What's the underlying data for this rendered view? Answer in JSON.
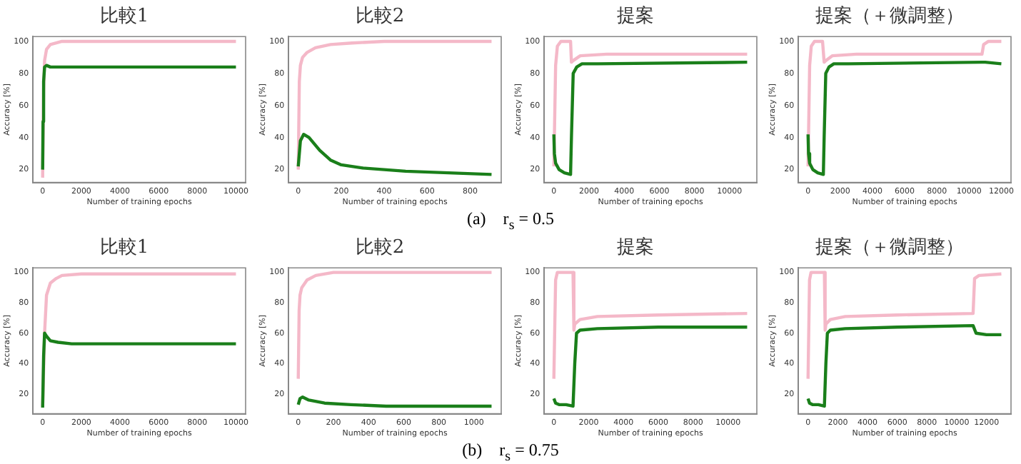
{
  "chart_data": [
    {
      "type": "line",
      "title": "比較1",
      "xlabel": "Number of training epochs",
      "ylabel": "Accuracy [%]",
      "xlim": [
        -500,
        10500
      ],
      "xticks": [
        0,
        2000,
        4000,
        6000,
        8000,
        10000
      ],
      "ylim": [
        12,
        103
      ],
      "yticks": [
        20,
        40,
        60,
        80,
        100
      ],
      "annotations": [
        "(a)　r$_{s}$ = 0.5"
      ],
      "series": [
        {
          "color": "#f4b8c8",
          "x": [
            0,
            50,
            100,
            200,
            400,
            700,
            1000,
            2000,
            10000
          ],
          "values": [
            15,
            70,
            88,
            95,
            98,
            99,
            100,
            100,
            100
          ]
        },
        {
          "color": "#1a7f1a",
          "x": [
            0,
            20,
            50,
            100,
            200,
            400,
            1000,
            3000,
            10000
          ],
          "values": [
            20,
            50,
            75,
            84,
            85,
            84,
            84,
            84,
            84
          ]
        }
      ]
    },
    {
      "type": "line",
      "title": "比較2",
      "xlabel": "Number of training epochs",
      "ylabel": "Accuracy [%]",
      "xlim": [
        -45,
        945
      ],
      "xticks": [
        0,
        200,
        400,
        600,
        800
      ],
      "ylim": [
        12,
        103
      ],
      "yticks": [
        20,
        40,
        60,
        80,
        100
      ],
      "series": [
        {
          "color": "#f4b8c8",
          "x": [
            0,
            5,
            10,
            20,
            40,
            80,
            150,
            250,
            400,
            900
          ],
          "values": [
            20,
            75,
            85,
            90,
            93,
            96,
            98,
            99,
            100,
            100
          ]
        },
        {
          "color": "#1a7f1a",
          "x": [
            0,
            10,
            25,
            50,
            100,
            150,
            200,
            300,
            500,
            700,
            900
          ],
          "values": [
            22,
            38,
            42,
            40,
            32,
            26,
            23,
            21,
            19,
            18,
            17
          ]
        }
      ]
    },
    {
      "type": "line",
      "title": "提案",
      "xlabel": "Number of training epochs",
      "ylabel": "Accuracy [%]",
      "xlim": [
        -550,
        11550
      ],
      "xticks": [
        0,
        2000,
        4000,
        6000,
        8000,
        10000
      ],
      "ylim": [
        12,
        103
      ],
      "yticks": [
        20,
        40,
        60,
        80,
        100
      ],
      "series": [
        {
          "color": "#f4b8c8",
          "x": [
            0,
            100,
            200,
            400,
            900,
            950,
            1000,
            1100,
            1500,
            3000,
            11000
          ],
          "values": [
            22,
            85,
            97,
            100,
            100,
            100,
            87,
            88,
            91,
            92,
            92
          ]
        },
        {
          "color": "#1a7f1a",
          "x": [
            0,
            30,
            100,
            300,
            600,
            950,
            1000,
            1100,
            1300,
            1600,
            2500,
            11000
          ],
          "values": [
            42,
            30,
            24,
            20,
            18,
            17,
            40,
            80,
            84,
            86,
            86,
            87
          ]
        }
      ]
    },
    {
      "type": "line",
      "title": "提案（＋微調整）",
      "xlabel": "Number of training epochs",
      "ylabel": "Accuracy [%]",
      "xlim": [
        -600,
        12600
      ],
      "xticks": [
        0,
        2000,
        4000,
        6000,
        8000,
        10000,
        12000
      ],
      "ylim": [
        12,
        103
      ],
      "yticks": [
        20,
        40,
        60,
        80,
        100
      ],
      "series": [
        {
          "color": "#f4b8c8",
          "x": [
            0,
            100,
            200,
            400,
            900,
            950,
            1000,
            1100,
            1500,
            3000,
            10800,
            10900,
            11200,
            12000
          ],
          "values": [
            22,
            85,
            97,
            100,
            100,
            100,
            87,
            88,
            91,
            92,
            92,
            98,
            100,
            100
          ]
        },
        {
          "color": "#1a7f1a",
          "x": [
            0,
            30,
            100,
            300,
            600,
            950,
            1000,
            1100,
            1300,
            1600,
            2500,
            10800,
            11000,
            12000
          ],
          "values": [
            42,
            30,
            24,
            20,
            18,
            17,
            40,
            80,
            84,
            86,
            86,
            87,
            87,
            86
          ]
        }
      ]
    },
    {
      "type": "line",
      "title": "比較1",
      "xlabel": "Number of training epochs",
      "ylabel": "Accuracy [%]",
      "xlim": [
        -500,
        10500
      ],
      "xticks": [
        0,
        2000,
        4000,
        6000,
        8000,
        10000
      ],
      "ylim": [
        7,
        103
      ],
      "yticks": [
        20,
        40,
        60,
        80,
        100
      ],
      "annotations": [
        "(b)　r$_{s}$ = 0.75"
      ],
      "series": [
        {
          "color": "#f4b8c8",
          "x": [
            0,
            100,
            200,
            400,
            700,
            1000,
            2000,
            10000
          ],
          "values": [
            12,
            60,
            85,
            93,
            96,
            98,
            99,
            99
          ]
        },
        {
          "color": "#1a7f1a",
          "x": [
            0,
            50,
            100,
            200,
            400,
            800,
            1500,
            10000
          ],
          "values": [
            11,
            45,
            60,
            58,
            55,
            54,
            53,
            53
          ]
        }
      ]
    },
    {
      "type": "line",
      "title": "比較2",
      "xlabel": "Number of training epochs",
      "ylabel": "Accuracy [%]",
      "xlim": [
        -55,
        1155
      ],
      "xticks": [
        0,
        200,
        400,
        600,
        800,
        1000
      ],
      "ylim": [
        7,
        103
      ],
      "yticks": [
        20,
        40,
        60,
        80,
        100
      ],
      "series": [
        {
          "color": "#f4b8c8",
          "x": [
            0,
            5,
            10,
            20,
            50,
            100,
            200,
            400,
            1100
          ],
          "values": [
            30,
            75,
            85,
            90,
            95,
            98,
            100,
            100,
            100
          ]
        },
        {
          "color": "#1a7f1a",
          "x": [
            0,
            10,
            25,
            60,
            150,
            300,
            500,
            1100
          ],
          "values": [
            13,
            17,
            18,
            16,
            14,
            13,
            12,
            12
          ]
        }
      ]
    },
    {
      "type": "line",
      "title": "提案",
      "xlabel": "Number of training epochs",
      "ylabel": "Accuracy [%]",
      "xlim": [
        -555,
        11655
      ],
      "xticks": [
        0,
        2000,
        4000,
        6000,
        8000,
        10000
      ],
      "ylim": [
        7,
        103
      ],
      "yticks": [
        20,
        40,
        60,
        80,
        100
      ],
      "series": [
        {
          "color": "#f4b8c8",
          "x": [
            0,
            100,
            200,
            500,
            1100,
            1150,
            1200,
            1500,
            2500,
            6000,
            11100
          ],
          "values": [
            30,
            95,
            100,
            100,
            100,
            62,
            66,
            69,
            71,
            72,
            73
          ]
        },
        {
          "color": "#1a7f1a",
          "x": [
            0,
            100,
            300,
            700,
            1100,
            1200,
            1300,
            1500,
            2500,
            6000,
            11100
          ],
          "values": [
            17,
            14,
            13,
            13,
            12,
            40,
            60,
            62,
            63,
            64,
            64
          ]
        }
      ]
    },
    {
      "type": "line",
      "title": "提案（＋微調整）",
      "xlabel": "Number of training epochs",
      "ylabel": "Accuracy [%]",
      "xlim": [
        -650,
        13650
      ],
      "xticks": [
        0,
        2000,
        4000,
        6000,
        8000,
        10000,
        12000
      ],
      "ylim": [
        7,
        103
      ],
      "yticks": [
        20,
        40,
        60,
        80,
        100
      ],
      "series": [
        {
          "color": "#f4b8c8",
          "x": [
            0,
            100,
            200,
            500,
            1100,
            1150,
            1200,
            1500,
            2500,
            6000,
            11100,
            11200,
            11500,
            13000
          ],
          "values": [
            30,
            95,
            100,
            100,
            100,
            62,
            66,
            69,
            71,
            72,
            73,
            96,
            98,
            99
          ]
        },
        {
          "color": "#1a7f1a",
          "x": [
            0,
            100,
            300,
            700,
            1100,
            1200,
            1300,
            1500,
            2500,
            6000,
            11100,
            11300,
            12000,
            13000
          ],
          "values": [
            17,
            14,
            13,
            13,
            12,
            40,
            60,
            62,
            63,
            64,
            65,
            60,
            59,
            59
          ]
        }
      ]
    }
  ]
}
